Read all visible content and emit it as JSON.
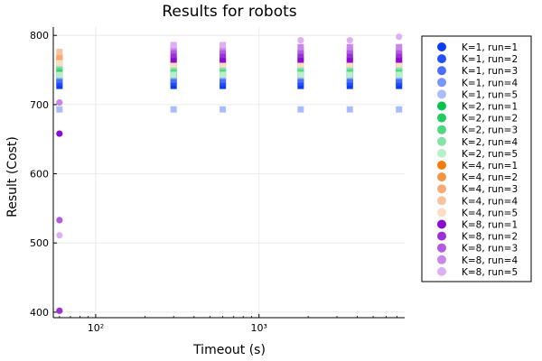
{
  "chart_data": {
    "type": "scatter",
    "title": "Results for robots",
    "xlabel": "Timeout (s)",
    "ylabel": "Result (Cost)",
    "xscale": "log",
    "xlim": [
      55,
      7800
    ],
    "ylim": [
      392,
      812
    ],
    "x_ticks": [
      100,
      1000
    ],
    "x_tick_labels": [
      "10²",
      "10³"
    ],
    "y_ticks": [
      400,
      500,
      600,
      700,
      800
    ],
    "y_tick_labels": [
      "400",
      "500",
      "600",
      "700",
      "800"
    ],
    "grid": true,
    "legend_position": "right-outside",
    "x": [
      60,
      300,
      600,
      1800,
      3600,
      7200
    ],
    "series": [
      {
        "name": "K=1, run=1",
        "color": "#0b3df5",
        "marker": "square",
        "values": [
          727,
          727,
          727,
          727,
          727,
          727
        ]
      },
      {
        "name": "K=1, run=2",
        "color": "#234ff6",
        "marker": "square",
        "values": [
          732,
          732,
          732,
          732,
          732,
          732
        ]
      },
      {
        "name": "K=1, run=3",
        "color": "#4a6ff7",
        "marker": "square",
        "values": [
          736,
          736,
          736,
          736,
          736,
          736
        ]
      },
      {
        "name": "K=1, run=4",
        "color": "#7b96f9",
        "marker": "square",
        "values": [
          741,
          741,
          741,
          741,
          741,
          741
        ]
      },
      {
        "name": "K=1, run=5",
        "color": "#abbcfb",
        "marker": "square",
        "values": [
          693,
          693,
          693,
          693,
          693,
          693
        ]
      },
      {
        "name": "K=2, run=1",
        "color": "#06c34c",
        "marker": "square",
        "values": [
          745,
          745,
          745,
          745,
          745,
          745
        ]
      },
      {
        "name": "K=2, run=2",
        "color": "#22cc60",
        "marker": "square",
        "values": [
          750,
          748,
          748,
          748,
          748,
          748
        ]
      },
      {
        "name": "K=2, run=3",
        "color": "#4dd77f",
        "marker": "square",
        "values": [
          754,
          752,
          752,
          752,
          752,
          752
        ]
      },
      {
        "name": "K=2, run=4",
        "color": "#85e3a6",
        "marker": "square",
        "values": [
          757,
          755,
          755,
          755,
          755,
          755
        ]
      },
      {
        "name": "K=2, run=5",
        "color": "#b8efcb",
        "marker": "square",
        "values": [
          743,
          743,
          743,
          743,
          743,
          743
        ]
      },
      {
        "name": "K=4, run=1",
        "color": "#f37c0f",
        "marker": "square",
        "values": [
          764,
          760,
          760,
          760,
          760,
          760
        ]
      },
      {
        "name": "K=4, run=2",
        "color": "#f59444",
        "marker": "square",
        "values": [
          768,
          762,
          762,
          762,
          762,
          762
        ]
      },
      {
        "name": "K=4, run=3",
        "color": "#f7ab73",
        "marker": "square",
        "values": [
          770,
          764,
          764,
          764,
          764,
          764
        ]
      },
      {
        "name": "K=4, run=4",
        "color": "#f9c39f",
        "marker": "square",
        "values": [
          776,
          767,
          767,
          767,
          767,
          767
        ]
      },
      {
        "name": "K=4, run=5",
        "color": "#fbdcc4",
        "marker": "square",
        "values": [
          760,
          758,
          758,
          758,
          758,
          758
        ]
      },
      {
        "name": "K=8, run=1",
        "color": "#8a0cd0",
        "marker": "square",
        "values": [
          658,
          765,
          765,
          765,
          765,
          765
        ]
      },
      {
        "name": "K=8, run=2",
        "color": "#9d2fd8",
        "marker": "square",
        "values": [
          402,
          772,
          772,
          772,
          772,
          772
        ]
      },
      {
        "name": "K=8, run=3",
        "color": "#b25ae1",
        "marker": "square",
        "values": [
          533,
          778,
          778,
          778,
          778,
          778
        ]
      },
      {
        "name": "K=8, run=4",
        "color": "#c886ea",
        "marker": "square",
        "values": [
          703,
          783,
          783,
          783,
          783,
          783
        ]
      },
      {
        "name": "K=8, run=5",
        "color": "#dcb0f2",
        "marker": "square",
        "values": [
          511,
          786,
          786,
          793,
          793,
          798
        ]
      }
    ]
  }
}
